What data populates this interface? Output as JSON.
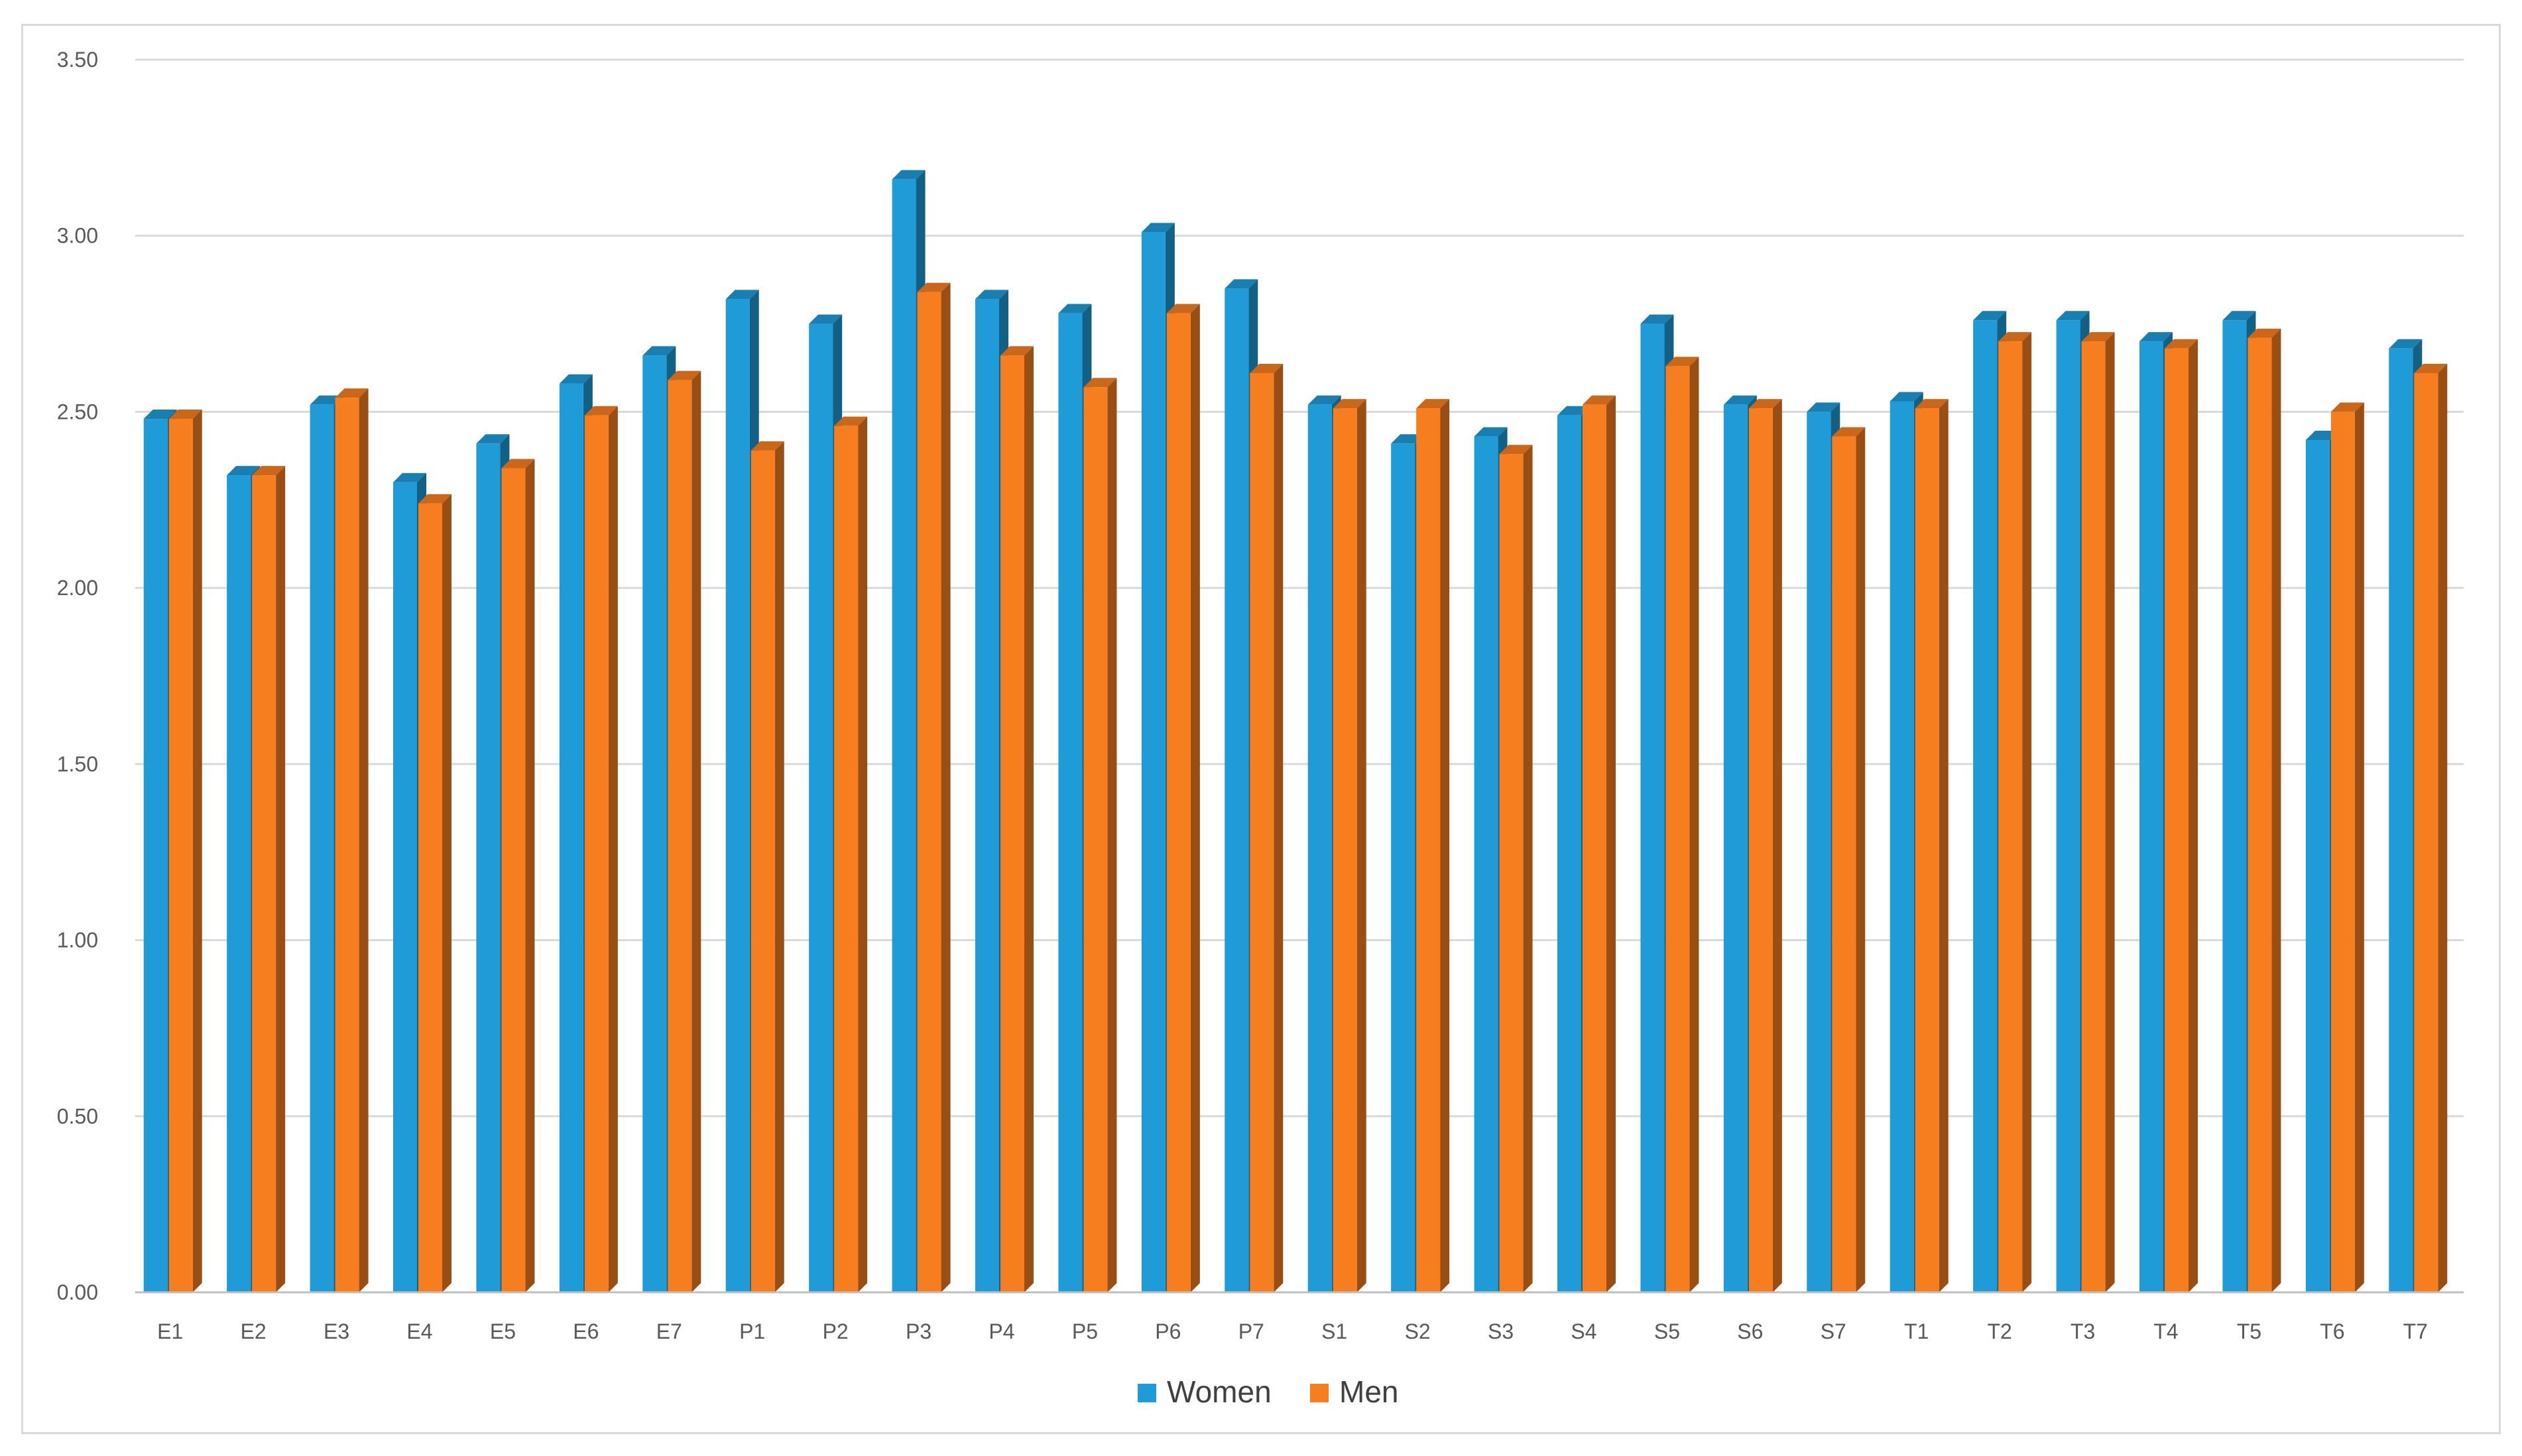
{
  "chart_data": {
    "type": "bar",
    "categories": [
      "E1",
      "E2",
      "E3",
      "E4",
      "E5",
      "E6",
      "E7",
      "P1",
      "P2",
      "P3",
      "P4",
      "P5",
      "P6",
      "P7",
      "S1",
      "S2",
      "S3",
      "S4",
      "S5",
      "S6",
      "S7",
      "T1",
      "T2",
      "T3",
      "T4",
      "T5",
      "T6",
      "T7"
    ],
    "series": [
      {
        "name": "Women",
        "color": "#1f9bd7",
        "values": [
          2.48,
          2.32,
          2.52,
          2.3,
          2.41,
          2.58,
          2.66,
          2.82,
          2.75,
          3.16,
          2.82,
          2.78,
          3.01,
          2.85,
          2.52,
          2.41,
          2.43,
          2.49,
          2.75,
          2.52,
          2.5,
          2.53,
          2.76,
          2.76,
          2.7,
          2.76,
          2.42,
          2.68
        ]
      },
      {
        "name": "Men",
        "color": "#f67e1e",
        "values": [
          2.48,
          2.32,
          2.54,
          2.24,
          2.34,
          2.49,
          2.59,
          2.39,
          2.46,
          2.84,
          2.66,
          2.57,
          2.78,
          2.61,
          2.51,
          2.51,
          2.38,
          2.52,
          2.63,
          2.51,
          2.43,
          2.51,
          2.7,
          2.7,
          2.68,
          2.71,
          2.5,
          2.61
        ]
      }
    ],
    "y_ticks": [
      "0.00",
      "0.50",
      "1.00",
      "1.50",
      "2.00",
      "2.50",
      "3.00",
      "3.50"
    ],
    "ylim": [
      0,
      3.5
    ],
    "grid": true,
    "legend_position": "bottom-center",
    "title": "",
    "xlabel": "",
    "ylabel": ""
  }
}
